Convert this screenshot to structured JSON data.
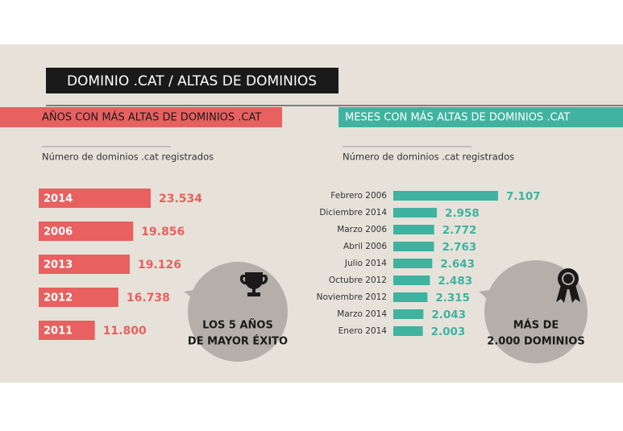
{
  "title": "DOMINIO .CAT / ALTAS DE DOMINIOS",
  "chart_data": [
    {
      "type": "bar",
      "orientation": "horizontal",
      "title": "AÑOS CON MÁS ALTAS DE DOMINIOS .CAT",
      "subtitle": "Número de dominios .cat registrados",
      "color": "#e8605f",
      "categories": [
        "2014",
        "2006",
        "2013",
        "2012",
        "2011"
      ],
      "values": [
        23534,
        19856,
        19126,
        16738,
        11800
      ],
      "value_labels": [
        "23.534",
        "19.856",
        "19.126",
        "16.738",
        "11.800"
      ],
      "annotation": [
        "LOS 5 AÑOS",
        "DE MAYOR ÉXITO"
      ]
    },
    {
      "type": "bar",
      "orientation": "horizontal",
      "title": "MESES CON MÁS ALTAS DE DOMINIOS .CAT",
      "subtitle": "Número de dominios .cat registrados",
      "color": "#3fb3a0",
      "categories": [
        "Febrero 2006",
        "Diciembre 2014",
        "Marzo 2006",
        "Abril 2006",
        "Julio 2014",
        "Octubre 2012",
        "Noviembre 2012",
        "Marzo 2014",
        "Enero 2014"
      ],
      "values": [
        7107,
        2958,
        2772,
        2763,
        2643,
        2483,
        2315,
        2043,
        2003
      ],
      "value_labels": [
        "7.107",
        "2.958",
        "2.772",
        "2.763",
        "2.643",
        "2.483",
        "2.315",
        "2.043",
        "2.003"
      ],
      "annotation": [
        "MÁS DE",
        "2.000 DOMINIOS"
      ]
    }
  ]
}
